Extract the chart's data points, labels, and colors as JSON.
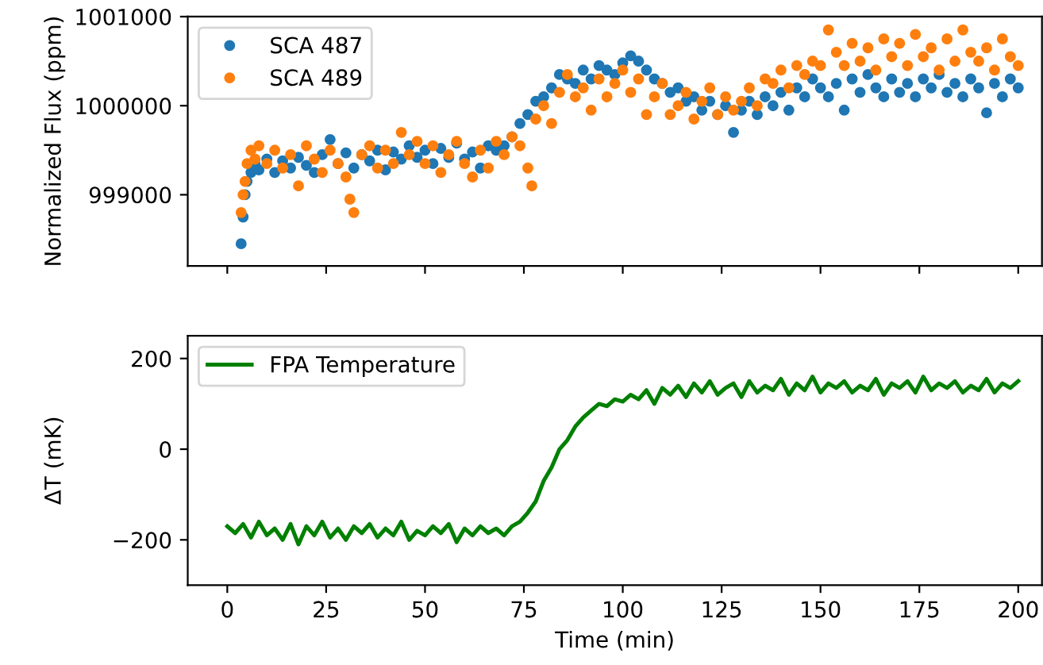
{
  "chart_data": [
    {
      "type": "scatter",
      "ylabel": "Normalized Flux (ppm)",
      "xlim": [
        -10,
        206
      ],
      "xticks": [
        0,
        25,
        50,
        75,
        100,
        125,
        150,
        175,
        200
      ],
      "ylim": [
        998200,
        1001000
      ],
      "yticks": [
        999000,
        1000000,
        1001000
      ],
      "tick_labels": "y",
      "legend": "top left",
      "marker": "circle",
      "grid": false,
      "series": [
        {
          "name": "SCA 487",
          "color": "#1f77b4",
          "x": [
            3.5,
            4,
            4.5,
            5,
            6,
            7,
            8,
            10,
            12,
            14,
            16,
            18,
            20,
            22,
            24,
            26,
            28,
            30,
            32,
            34,
            36,
            38,
            40,
            42,
            44,
            46,
            48,
            50,
            52,
            54,
            56,
            58,
            60,
            62,
            64,
            66,
            68,
            70,
            72,
            74,
            76,
            78,
            80,
            82,
            84,
            86,
            88,
            90,
            92,
            94,
            96,
            98,
            100,
            102,
            104,
            106,
            108,
            110,
            112,
            114,
            116,
            118,
            120,
            122,
            124,
            126,
            128,
            130,
            132,
            134,
            136,
            138,
            140,
            142,
            144,
            146,
            148,
            150,
            152,
            154,
            156,
            158,
            160,
            162,
            164,
            166,
            168,
            170,
            172,
            174,
            176,
            178,
            180,
            182,
            184,
            186,
            188,
            190,
            192,
            194,
            196,
            198,
            200
          ],
          "values": [
            998450,
            998750,
            999000,
            999150,
            999250,
            999350,
            999280,
            999400,
            999250,
            999380,
            999300,
            999420,
            999330,
            999250,
            999450,
            999620,
            999350,
            999470,
            999300,
            999450,
            999380,
            999500,
            999280,
            999480,
            999400,
            999550,
            999420,
            999500,
            999350,
            999520,
            999420,
            999580,
            999400,
            999480,
            999300,
            999550,
            999500,
            999550,
            999650,
            999800,
            999900,
            1000050,
            1000100,
            1000200,
            1000350,
            1000300,
            1000250,
            1000400,
            1000300,
            1000450,
            1000400,
            1000350,
            1000480,
            1000560,
            1000500,
            1000400,
            1000300,
            1000250,
            1000150,
            1000200,
            1000050,
            1000100,
            999950,
            1000050,
            999900,
            1000000,
            999700,
            999950,
            1000050,
            999900,
            1000100,
            1000000,
            1000150,
            999950,
            1000200,
            1000100,
            1000300,
            1000200,
            1000100,
            1000250,
            999950,
            1000300,
            1000150,
            1000350,
            1000200,
            1000100,
            1000300,
            1000150,
            1000250,
            1000100,
            1000300,
            1000200,
            1000350,
            1000150,
            1000250,
            1000100,
            1000300,
            1000200,
            999920,
            1000250,
            1000100,
            1000300,
            1000200
          ]
        },
        {
          "name": "SCA 489",
          "color": "#ff7f0e",
          "x": [
            3.5,
            4,
            4.5,
            5,
            6,
            7,
            8,
            10,
            12,
            14,
            16,
            18,
            20,
            22,
            24,
            26,
            28,
            30,
            31,
            32,
            34,
            36,
            38,
            40,
            42,
            44,
            46,
            48,
            50,
            52,
            54,
            56,
            58,
            60,
            62,
            64,
            66,
            68,
            70,
            72,
            74,
            76,
            77,
            78,
            80,
            82,
            84,
            86,
            88,
            90,
            92,
            94,
            96,
            98,
            100,
            102,
            104,
            106,
            108,
            110,
            112,
            114,
            116,
            118,
            120,
            122,
            124,
            126,
            128,
            130,
            132,
            134,
            136,
            138,
            140,
            142,
            144,
            146,
            148,
            150,
            152,
            154,
            156,
            158,
            160,
            162,
            164,
            166,
            168,
            170,
            172,
            174,
            176,
            178,
            180,
            182,
            184,
            186,
            188,
            190,
            192,
            194,
            196,
            198,
            200
          ],
          "values": [
            998800,
            999000,
            999150,
            999350,
            999500,
            999400,
            999550,
            999350,
            999500,
            999300,
            999450,
            999100,
            999550,
            999400,
            999250,
            999500,
            999350,
            999200,
            998950,
            998800,
            999450,
            999550,
            999300,
            999500,
            999350,
            999700,
            999450,
            999600,
            999350,
            999550,
            999250,
            999450,
            999600,
            999350,
            999200,
            999500,
            999300,
            999600,
            999450,
            999650,
            999550,
            999300,
            999100,
            999850,
            1000000,
            999800,
            1000150,
            1000350,
            1000100,
            1000200,
            999950,
            1000300,
            1000100,
            1000250,
            1000400,
            1000150,
            1000300,
            999900,
            1000100,
            1000250,
            999900,
            1000000,
            1000150,
            999850,
            1000050,
            1000200,
            999900,
            1000100,
            999950,
            1000050,
            1000200,
            1000000,
            1000300,
            1000250,
            1000400,
            1000200,
            1000450,
            1000350,
            1000500,
            1000450,
            1000850,
            1000600,
            1000450,
            1000700,
            1000500,
            1000650,
            1000400,
            1000750,
            1000550,
            1000700,
            1000450,
            1000800,
            1000550,
            1000650,
            1000400,
            1000750,
            1000500,
            1000850,
            1000600,
            1000500,
            1000650,
            1000400,
            1000750,
            1000550,
            1000450
          ]
        }
      ]
    },
    {
      "type": "line",
      "xlabel": "Time (min)",
      "ylabel": "ΔT (mK)",
      "xlim": [
        -10,
        206
      ],
      "xticks": [
        0,
        25,
        50,
        75,
        100,
        125,
        150,
        175,
        200
      ],
      "ylim": [
        -300,
        250
      ],
      "yticks": [
        {
          "value": -200,
          "label": "−200"
        },
        0,
        200
      ],
      "legend": "top left",
      "grid": false,
      "line_style": "solid",
      "series": [
        {
          "name": "FPA Temperature",
          "color": "#008000",
          "x": [
            0,
            2,
            4,
            6,
            8,
            10,
            12,
            14,
            16,
            18,
            20,
            22,
            24,
            26,
            28,
            30,
            32,
            34,
            36,
            38,
            40,
            42,
            44,
            46,
            48,
            50,
            52,
            54,
            56,
            58,
            60,
            62,
            64,
            66,
            68,
            70,
            72,
            74,
            76,
            78,
            80,
            82,
            84,
            86,
            88,
            90,
            92,
            94,
            96,
            98,
            100,
            102,
            104,
            106,
            108,
            110,
            112,
            114,
            116,
            118,
            120,
            122,
            124,
            126,
            128,
            130,
            132,
            134,
            136,
            138,
            140,
            142,
            144,
            146,
            148,
            150,
            152,
            154,
            156,
            158,
            160,
            162,
            164,
            166,
            168,
            170,
            172,
            174,
            176,
            178,
            180,
            182,
            184,
            186,
            188,
            190,
            192,
            194,
            196,
            198,
            200
          ],
          "values": [
            -170,
            -185,
            -165,
            -195,
            -160,
            -190,
            -175,
            -200,
            -165,
            -210,
            -170,
            -190,
            -160,
            -195,
            -175,
            -200,
            -170,
            -185,
            -165,
            -195,
            -175,
            -190,
            -160,
            -200,
            -180,
            -190,
            -170,
            -185,
            -165,
            -205,
            -175,
            -190,
            -170,
            -185,
            -175,
            -190,
            -170,
            -160,
            -140,
            -115,
            -70,
            -40,
            0,
            20,
            50,
            70,
            85,
            100,
            95,
            110,
            105,
            120,
            110,
            130,
            100,
            135,
            120,
            140,
            115,
            145,
            125,
            150,
            120,
            135,
            145,
            115,
            150,
            125,
            140,
            130,
            155,
            120,
            145,
            130,
            160,
            125,
            145,
            135,
            150,
            125,
            140,
            130,
            155,
            120,
            145,
            135,
            150,
            125,
            160,
            130,
            145,
            135,
            150,
            125,
            140,
            130,
            155,
            125,
            145,
            135,
            150
          ]
        }
      ]
    }
  ]
}
